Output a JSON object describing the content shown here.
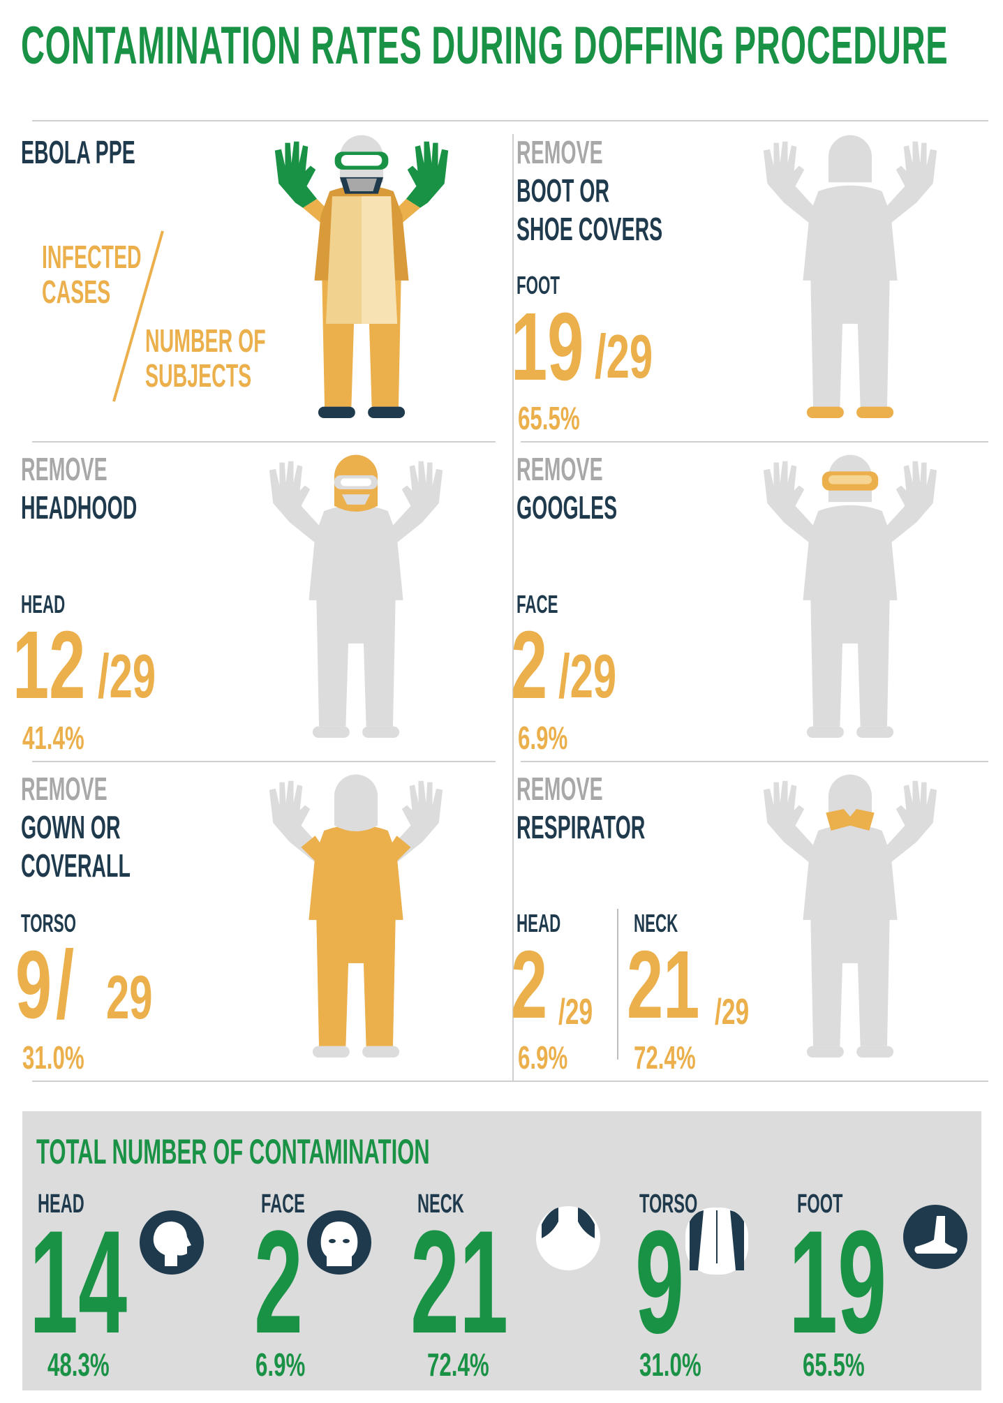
{
  "title": "CONTAMINATION RATES DURING DOFFING PROCEDURE",
  "colors": {
    "green": "#1a9246",
    "gold": "#ebaf4b",
    "navy": "#1e3a4c",
    "grey_text": "#a8a8a8",
    "silhouette": "#dcdcdc"
  },
  "legend": {
    "heading": "EBOLA PPE",
    "infected_line1": "INFECTED",
    "infected_line2": "CASES",
    "subjects_line1": "NUMBER OF",
    "subjects_line2": "SUBJECTS"
  },
  "steps": {
    "boot": {
      "remove": "REMOVE",
      "line1": "BOOT OR",
      "line2": "SHOE COVERS",
      "region": "FOOT",
      "infected": "19",
      "denominator": "/29",
      "percent": "65.5%"
    },
    "headhood": {
      "remove": "REMOVE",
      "line1": "HEADHOOD",
      "region": "HEAD",
      "infected": "12",
      "denominator": "/29",
      "percent": "41.4%"
    },
    "goggles": {
      "remove": "REMOVE",
      "line1": "GOOGLES",
      "region": "FACE",
      "infected": "2",
      "denominator": "/29",
      "percent": "6.9%"
    },
    "gown": {
      "remove": "REMOVE",
      "line1": "GOWN OR",
      "line2": "COVERALL",
      "region": "TORSO",
      "infected": "9",
      "slash": "/",
      "denominator": "29",
      "percent": "31.0%"
    },
    "respirator": {
      "remove": "REMOVE",
      "line1": "RESPIRATOR",
      "head": {
        "region": "HEAD",
        "infected": "2",
        "denominator": "/29",
        "percent": "6.9%"
      },
      "neck": {
        "region": "NECK",
        "infected": "21",
        "denominator": "/29",
        "percent": "72.4%"
      }
    }
  },
  "totals": {
    "heading": "TOTAL NUMBER OF CONTAMINATION",
    "items": [
      {
        "label": "HEAD",
        "value": "14",
        "percent": "48.3%",
        "icon": "head-profile-icon"
      },
      {
        "label": "FACE",
        "value": "2",
        "percent": "6.9%",
        "icon": "face-icon"
      },
      {
        "label": "NECK",
        "value": "21",
        "percent": "72.4%",
        "icon": "neck-icon"
      },
      {
        "label": "TORSO",
        "value": "9",
        "percent": "31.0%",
        "icon": "torso-icon"
      },
      {
        "label": "FOOT",
        "value": "19",
        "percent": "65.5%",
        "icon": "foot-icon"
      }
    ]
  }
}
